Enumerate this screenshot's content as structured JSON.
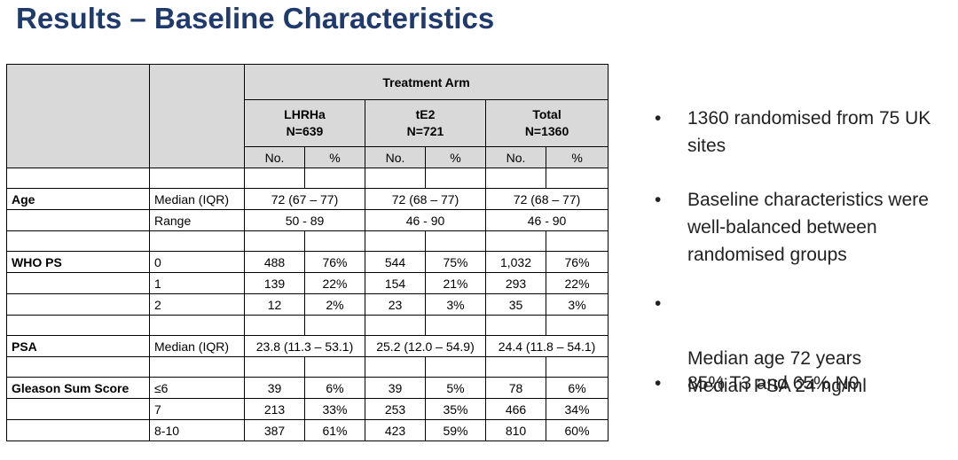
{
  "title": "Results – Baseline Characteristics",
  "table": {
    "header_arm": "Treatment Arm",
    "groups": [
      {
        "name": "LHRHa",
        "n": "N=639"
      },
      {
        "name": "tE2",
        "n": "N=721"
      },
      {
        "name": "Total",
        "n": "N=1360"
      }
    ],
    "sub_no": "No.",
    "sub_pct": "%",
    "age": {
      "label": "Age",
      "median_label": "Median (IQR)",
      "median": [
        "72 (67 – 77)",
        "72 (68 – 77)",
        "72 (68 – 77)"
      ],
      "range_label": "Range",
      "range": [
        "50 - 89",
        "46 - 90",
        "46 - 90"
      ]
    },
    "who": {
      "label": "WHO PS",
      "rows": [
        {
          "cat": "0",
          "vals": [
            "488",
            "76%",
            "544",
            "75%",
            "1,032",
            "76%"
          ]
        },
        {
          "cat": "1",
          "vals": [
            "139",
            "22%",
            "154",
            "21%",
            "293",
            "22%"
          ]
        },
        {
          "cat": "2",
          "vals": [
            "12",
            "2%",
            "23",
            "3%",
            "35",
            "3%"
          ]
        }
      ]
    },
    "psa": {
      "label": "PSA",
      "median_label": "Median (IQR)",
      "median": [
        "23.8 (11.3 – 53.1)",
        "25.2 (12.0 – 54.9)",
        "24.4 (11.8 – 54.1)"
      ]
    },
    "gleason": {
      "label": "Gleason Sum Score",
      "rows": [
        {
          "cat": "≤6",
          "vals": [
            "39",
            "6%",
            "39",
            "5%",
            "78",
            "6%"
          ]
        },
        {
          "cat": "7",
          "vals": [
            "213",
            "33%",
            "253",
            "35%",
            "466",
            "34%"
          ]
        },
        {
          "cat": "8-10",
          "vals": [
            "387",
            "61%",
            "423",
            "59%",
            "810",
            "60%"
          ]
        }
      ]
    }
  },
  "bullets": [
    "1360 randomised from 75 UK sites",
    "Baseline characteristics were well-balanced between randomised groups",
    "Median age 72 years\nMedian PSA 24 ng/ml",
    "85% T3 and 65% N0"
  ],
  "bullet_symbol": "•"
}
